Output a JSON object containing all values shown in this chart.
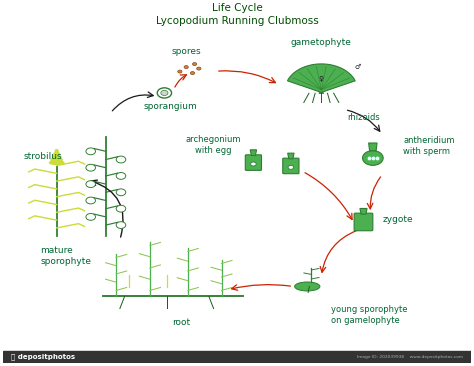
{
  "title": "Life Cycle\nLycopodium Running Clubmoss",
  "bg_color": "#ffffff",
  "dark_bar_color": "#2d2d2d",
  "text_color_teal": "#008080",
  "text_color_dark": "#1a5c1a",
  "arrow_color_dark": "#1a1a1a",
  "arrow_color_red": "#cc2200",
  "plant_green_light": "#8bc34a",
  "plant_green_dark": "#2e7d32",
  "plant_green_mid": "#4caf50",
  "plant_yellow": "#cddc39",
  "spore_brown": "#8b4513",
  "spore_orange": "#cd853f",
  "rhizoid_color": "#1b5e20",
  "labels": {
    "spores": "spores",
    "sporangium": "sporangium",
    "gametophyte": "gametophyte",
    "rhizoids": "rhizoids",
    "antheridium": "antheridium\nwith sperm",
    "archegonium": "archegonium\nwith egg",
    "strobilus": "strobilus",
    "mature_sporophyte": "mature\nsporophyte",
    "zygote": "zygote",
    "young_sporophyte": "young sporophyte\non gamelophyte",
    "root": "root"
  },
  "depositphotos_bar": "#333333",
  "watermark_text": "depositphotos",
  "image_id_text": "Image ID: 202039938    www.depositphotos.com"
}
